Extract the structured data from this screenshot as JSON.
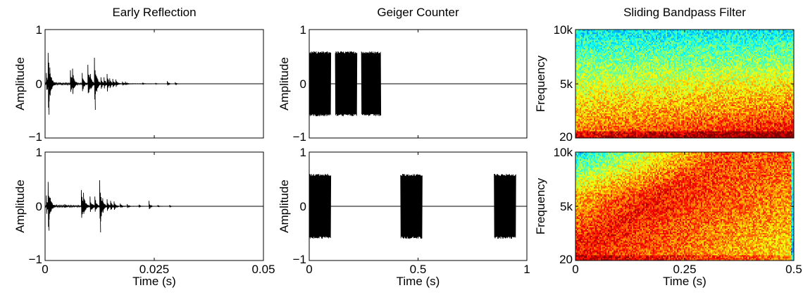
{
  "figure": {
    "background": "#ffffff",
    "line_color": "#000000"
  },
  "chart_data": [
    {
      "id": "early-reflection-top",
      "type": "line",
      "title": "Early Reflection",
      "xlabel": "",
      "ylabel": "Amplitude",
      "xlim": [
        0,
        0.05
      ],
      "ylim": [
        -1,
        1
      ],
      "yticks": [
        -1,
        0,
        1
      ],
      "yticklabels": [
        "−1",
        "0",
        "1"
      ],
      "xticks": [
        0,
        0.025,
        0.05
      ],
      "xticklabels": [],
      "grid": false,
      "series": [
        {
          "bursts": [
            {
              "t": 0.0003,
              "a": 0.2,
              "len": 0.0012
            },
            {
              "t": 0.0007,
              "a": 0.57,
              "len": 0.0016
            },
            {
              "t": 0.0011,
              "a": 0.3,
              "len": 0.0012
            },
            {
              "t": 0.0058,
              "a": 0.25,
              "len": 0.0014
            },
            {
              "t": 0.0063,
              "a": 0.28,
              "len": 0.0012
            },
            {
              "t": 0.0085,
              "a": 0.2,
              "len": 0.0012
            },
            {
              "t": 0.0098,
              "a": 0.35,
              "len": 0.0015
            },
            {
              "t": 0.0104,
              "a": 0.18,
              "len": 0.0012
            },
            {
              "t": 0.0113,
              "a": 0.48,
              "len": 0.0015
            },
            {
              "t": 0.0118,
              "a": 0.13,
              "len": 0.001
            },
            {
              "t": 0.0128,
              "a": 0.12,
              "len": 0.0012
            },
            {
              "t": 0.0135,
              "a": 0.12,
              "len": 0.0014
            },
            {
              "t": 0.0142,
              "a": 0.18,
              "len": 0.0012
            },
            {
              "t": 0.0148,
              "a": 0.1,
              "len": 0.0012
            },
            {
              "t": 0.0155,
              "a": 0.09,
              "len": 0.0012
            },
            {
              "t": 0.0162,
              "a": 0.08,
              "len": 0.0012
            },
            {
              "t": 0.0177,
              "a": 0.04,
              "len": 0.001
            },
            {
              "t": 0.0184,
              "a": 0.04,
              "len": 0.001
            },
            {
              "t": 0.0223,
              "a": 0.02,
              "len": 0.0008
            },
            {
              "t": 0.0253,
              "a": 0.015,
              "len": 0.0008
            },
            {
              "t": 0.028,
              "a": 0.05,
              "len": 0.0008
            },
            {
              "t": 0.0298,
              "a": 0.03,
              "len": 0.0008
            }
          ],
          "decay_tail": {
            "start": 0.0,
            "end": 0.026,
            "a": 0.04
          }
        }
      ]
    },
    {
      "id": "geiger-counter-top",
      "type": "line",
      "title": "Geiger Counter",
      "xlabel": "",
      "ylabel": "Amplitude",
      "xlim": [
        0,
        1
      ],
      "ylim": [
        -1,
        1
      ],
      "yticks": [
        -1,
        0,
        1
      ],
      "yticklabels": [
        "−1",
        "0",
        "1"
      ],
      "xticks": [
        0,
        0.5,
        1
      ],
      "xticklabels": [],
      "grid": false,
      "series": [
        {
          "blocks": [
            {
              "start": 0.0,
              "end": 0.1,
              "a": 0.6
            },
            {
              "start": 0.12,
              "end": 0.22,
              "a": 0.6
            },
            {
              "start": 0.24,
              "end": 0.33,
              "a": 0.6
            }
          ]
        }
      ]
    },
    {
      "id": "sliding-bandpass-top",
      "type": "heatmap",
      "title": "Sliding Bandpass Filter",
      "xlabel": "",
      "ylabel": "Frequency",
      "xlim": [
        0,
        0.5
      ],
      "ylim": [
        20,
        10000
      ],
      "yticks": [
        20,
        5000,
        10000
      ],
      "yticklabels": [
        "20",
        "5k",
        "10k"
      ],
      "xticks": [
        0,
        0.25,
        0.5
      ],
      "xticklabels": [],
      "grid": false,
      "colormap": "jet",
      "energy_profile": "band-low"
    },
    {
      "id": "early-reflection-bottom",
      "type": "line",
      "title": "",
      "xlabel": "Time (s)",
      "ylabel": "Amplitude",
      "xlim": [
        0,
        0.05
      ],
      "ylim": [
        -1,
        1
      ],
      "yticks": [
        -1,
        0,
        1
      ],
      "yticklabels": [
        "−1",
        "0",
        "1"
      ],
      "xticks": [
        0,
        0.025,
        0.05
      ],
      "xticklabels": [
        "0",
        "0.025",
        "0.05"
      ],
      "grid": false,
      "series": [
        {
          "bursts": [
            {
              "t": 0.0003,
              "a": 0.2,
              "len": 0.0012
            },
            {
              "t": 0.0007,
              "a": 0.45,
              "len": 0.0015
            },
            {
              "t": 0.0012,
              "a": 0.15,
              "len": 0.0012
            },
            {
              "t": 0.0045,
              "a": 0.04,
              "len": 0.001
            },
            {
              "t": 0.0083,
              "a": 0.3,
              "len": 0.0014
            },
            {
              "t": 0.0088,
              "a": 0.25,
              "len": 0.0014
            },
            {
              "t": 0.0103,
              "a": 0.18,
              "len": 0.0014
            },
            {
              "t": 0.0114,
              "a": 0.18,
              "len": 0.0012
            },
            {
              "t": 0.0125,
              "a": 0.48,
              "len": 0.0015
            },
            {
              "t": 0.0132,
              "a": 0.15,
              "len": 0.0012
            },
            {
              "t": 0.0142,
              "a": 0.13,
              "len": 0.0012
            },
            {
              "t": 0.015,
              "a": 0.1,
              "len": 0.0012
            },
            {
              "t": 0.0158,
              "a": 0.09,
              "len": 0.0012
            },
            {
              "t": 0.0172,
              "a": 0.05,
              "len": 0.001
            },
            {
              "t": 0.0188,
              "a": 0.04,
              "len": 0.001
            },
            {
              "t": 0.0215,
              "a": 0.03,
              "len": 0.0008
            },
            {
              "t": 0.0238,
              "a": 0.1,
              "len": 0.0008
            },
            {
              "t": 0.0258,
              "a": 0.02,
              "len": 0.0008
            },
            {
              "t": 0.0285,
              "a": 0.02,
              "len": 0.0008
            }
          ],
          "decay_tail": {
            "start": 0.0,
            "end": 0.028,
            "a": 0.03
          }
        }
      ]
    },
    {
      "id": "geiger-counter-bottom",
      "type": "line",
      "title": "",
      "xlabel": "Time (s)",
      "ylabel": "Amplitude",
      "xlim": [
        0,
        1
      ],
      "ylim": [
        -1,
        1
      ],
      "yticks": [
        -1,
        0,
        1
      ],
      "yticklabels": [
        "−1",
        "0",
        "1"
      ],
      "xticks": [
        0,
        0.5,
        1
      ],
      "xticklabels": [
        "0",
        "0.5",
        "1"
      ],
      "grid": false,
      "series": [
        {
          "blocks": [
            {
              "start": 0.0,
              "end": 0.1,
              "a": 0.6
            },
            {
              "start": 0.42,
              "end": 0.52,
              "a": 0.6
            },
            {
              "start": 0.85,
              "end": 0.95,
              "a": 0.6
            }
          ]
        }
      ]
    },
    {
      "id": "sliding-bandpass-bottom",
      "type": "heatmap",
      "title": "",
      "xlabel": "Time (s)",
      "ylabel": "Frequency",
      "xlim": [
        0,
        0.5
      ],
      "ylim": [
        20,
        10000
      ],
      "yticks": [
        20,
        5000,
        10000
      ],
      "yticklabels": [
        "20",
        "5k",
        "10k"
      ],
      "xticks": [
        0,
        0.25,
        0.5
      ],
      "xticklabels": [
        "0",
        "0.25",
        "0.5"
      ],
      "grid": false,
      "colormap": "jet",
      "energy_profile": "sweep-up"
    }
  ]
}
